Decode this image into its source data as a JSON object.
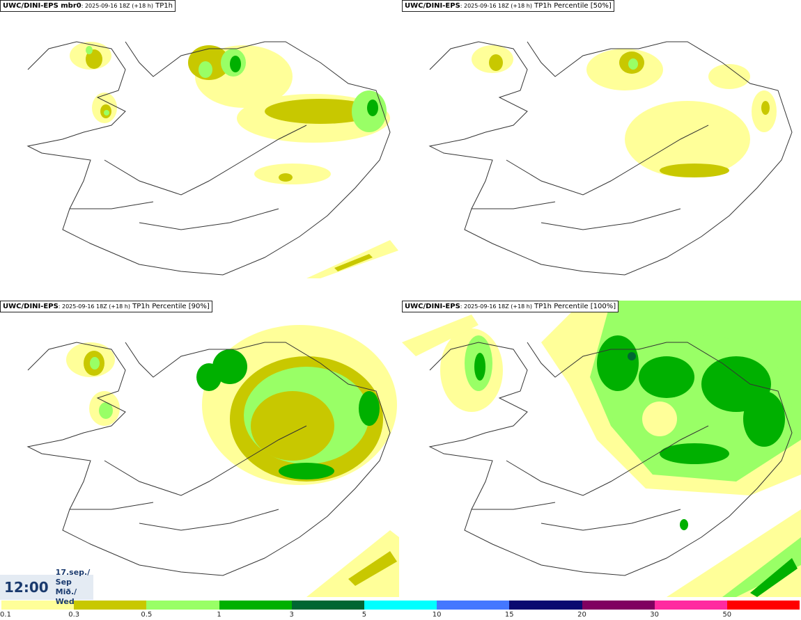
{
  "panels": [
    {
      "model": "UWC/DINI-EPS mbr0",
      "meta": ": 2025-09-16 18Z (+18 h)",
      "field": "TP1h"
    },
    {
      "model": "UWC/DINI-EPS",
      "meta": ": 2025-09-16 18Z (+18 h)",
      "field": "TP1h Percentile [50%]"
    },
    {
      "model": "UWC/DINI-EPS",
      "meta": ": 2025-09-16 18Z (+18 h)",
      "field": "TP1h Percentile [90%]"
    },
    {
      "model": "UWC/DINI-EPS",
      "meta": ": 2025-09-16 18Z (+18 h)",
      "field": "TP1h Percentile [100%]"
    }
  ],
  "timebox": {
    "time": "12:00",
    "date_line1": "17.sep./ Sep",
    "date_line2": "Mið./ Wed"
  },
  "legend": {
    "ticks": [
      "0.1",
      "0.3",
      "0.5",
      "1",
      "3",
      "5",
      "10",
      "15",
      "20",
      "30",
      "50"
    ],
    "colors": [
      "#ffff99",
      "#c8c800",
      "#99ff66",
      "#00b000",
      "#006633",
      "#00ffff",
      "#4477ff",
      "#0a0a70",
      "#800060",
      "#ff2aa0",
      "#ff0000"
    ]
  },
  "colors": {
    "light": "#ffff99",
    "olive": "#c8c800",
    "lightgreen": "#99ff66",
    "green": "#00b000",
    "dark": "#006633"
  }
}
